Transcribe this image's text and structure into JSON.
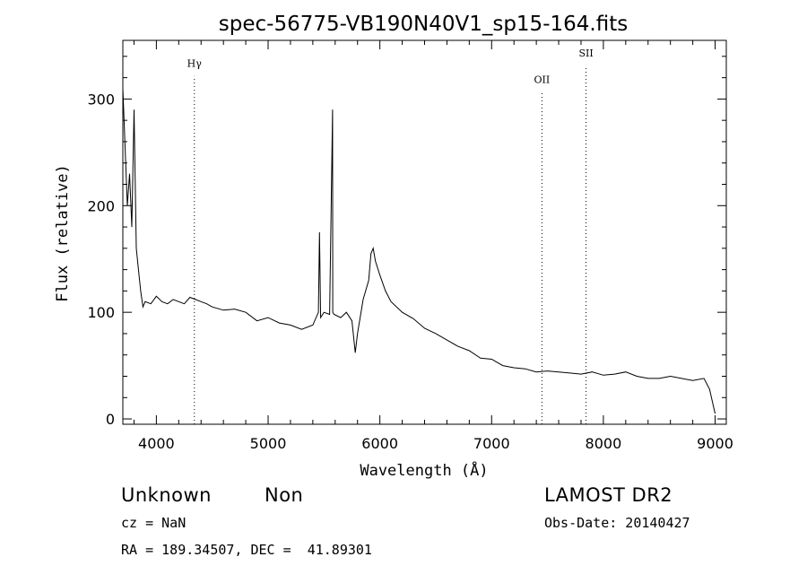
{
  "chart_data": {
    "type": "line",
    "title": "spec-56775-VB190N40V1_sp15-164.fits",
    "xlabel": "Wavelength (Å)",
    "ylabel": "Flux (relative)",
    "xlim": [
      3700,
      9100
    ],
    "ylim": [
      -5,
      355
    ],
    "x_ticks": [
      4000,
      5000,
      6000,
      7000,
      8000,
      9000
    ],
    "y_ticks": [
      0,
      100,
      200,
      300
    ],
    "grid": false,
    "line_color": "#000000",
    "series": [
      {
        "x": [
          3700,
          3720,
          3740,
          3760,
          3780,
          3800,
          3820,
          3840,
          3860,
          3880,
          3900,
          3950,
          4000,
          4050,
          4100,
          4150,
          4200,
          4250,
          4300,
          4350,
          4400,
          4450,
          4500,
          4600,
          4700,
          4800,
          4900,
          5000,
          5100,
          5200,
          5300,
          5400,
          5450,
          5460,
          5470,
          5500,
          5550,
          5577,
          5578,
          5590,
          5650,
          5700,
          5750,
          5780,
          5800,
          5850,
          5900,
          5920,
          5940,
          5960,
          6000,
          6050,
          6100,
          6200,
          6300,
          6400,
          6500,
          6600,
          6700,
          6800,
          6900,
          7000,
          7100,
          7200,
          7300,
          7400,
          7500,
          7600,
          7700,
          7800,
          7900,
          8000,
          8100,
          8200,
          8300,
          8400,
          8500,
          8600,
          8700,
          8800,
          8900,
          8950,
          9000
        ],
        "y": [
          310,
          255,
          200,
          230,
          180,
          290,
          160,
          140,
          120,
          105,
          110,
          108,
          115,
          110,
          108,
          112,
          110,
          108,
          114,
          112,
          110,
          108,
          105,
          102,
          103,
          100,
          92,
          95,
          90,
          88,
          84,
          88,
          100,
          175,
          95,
          100,
          98,
          290,
          100,
          98,
          95,
          100,
          92,
          62,
          80,
          112,
          130,
          155,
          160,
          148,
          135,
          120,
          110,
          100,
          94,
          85,
          80,
          74,
          68,
          64,
          57,
          56,
          50,
          48,
          47,
          44,
          45,
          44,
          43,
          42,
          44,
          41,
          42,
          44,
          40,
          38,
          38,
          40,
          38,
          36,
          38,
          28,
          5
        ]
      }
    ],
    "annotations": [
      {
        "label": "Hγ",
        "x": 4340,
        "y_label": 330
      },
      {
        "label": "OII",
        "x": 7450,
        "y_label": 315
      },
      {
        "label": "SII",
        "x": 7845,
        "y_label": 340
      }
    ]
  },
  "info": {
    "class_label": "Unknown",
    "subclass_label": "Non",
    "survey": "LAMOST DR2",
    "cz": "cz = NaN",
    "obs_date": "Obs-Date: 20140427",
    "coords": "RA = 189.34507, DEC =  41.89301"
  }
}
